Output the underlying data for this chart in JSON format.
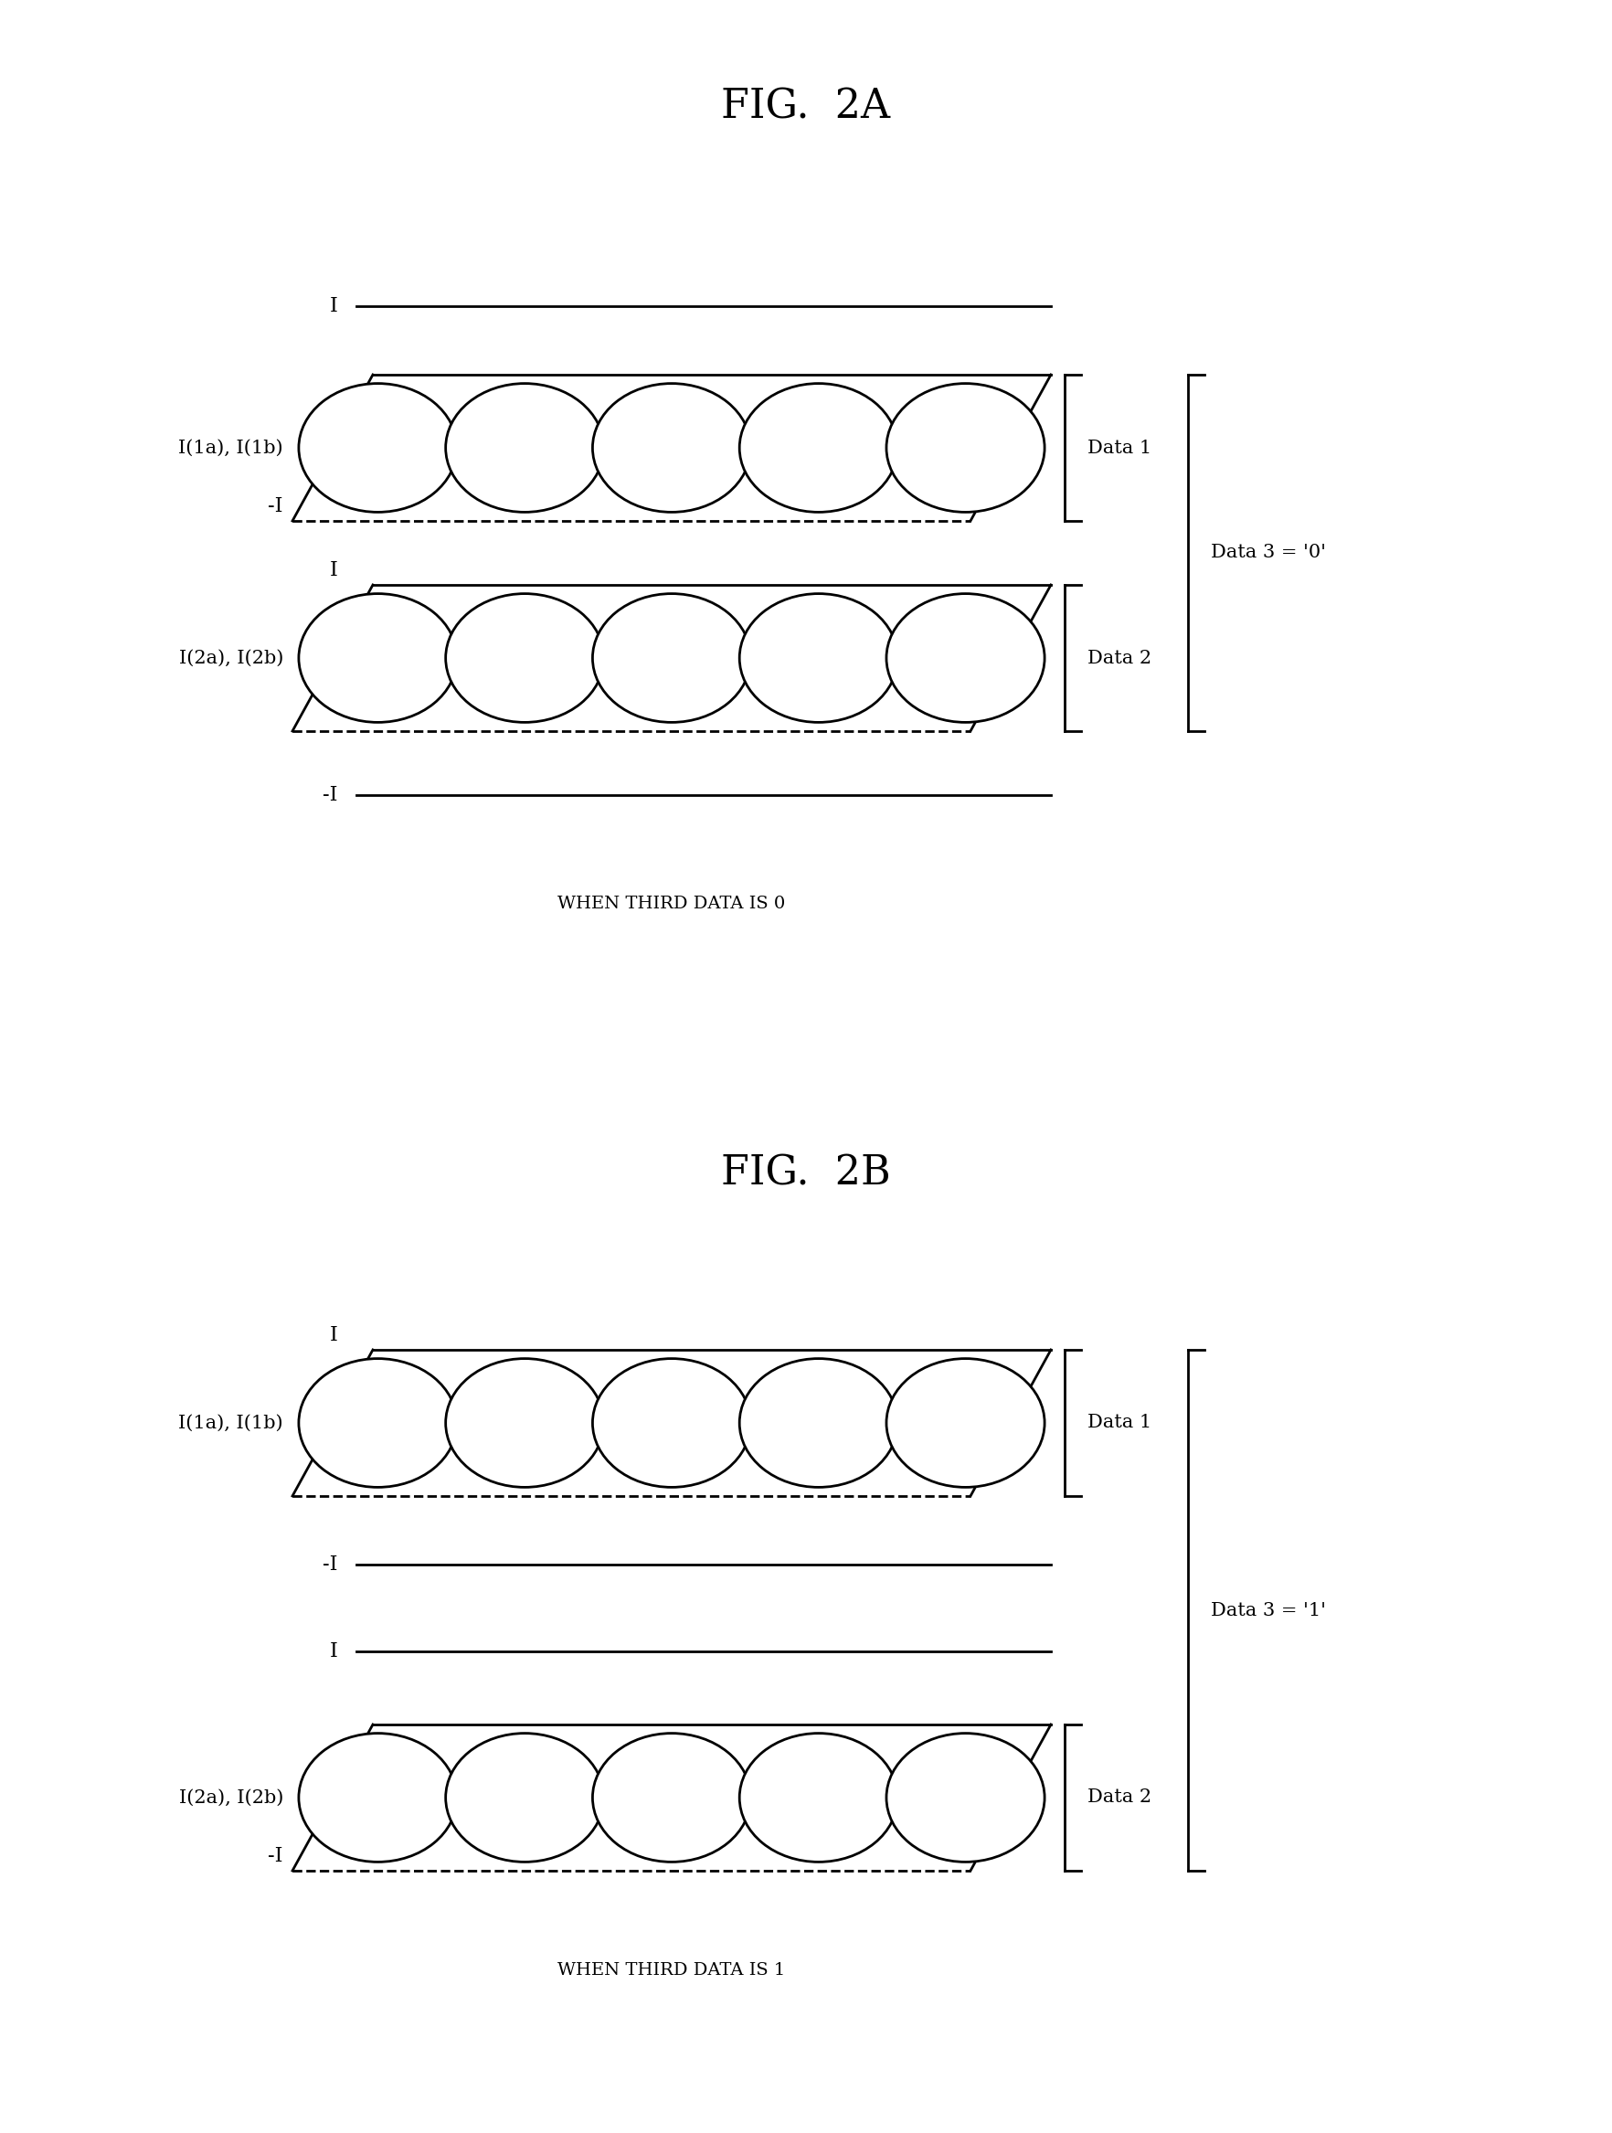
{
  "fig_title_A": "FIG.  2A",
  "fig_title_B": "FIG.  2B",
  "subtitle_A": "WHEN THIRD DATA IS 0",
  "subtitle_B": "WHEN THIRD DATA IS 1",
  "data3_label_A": "Data 3 = '0'",
  "data3_label_B": "Data 3 = '1'",
  "background_color": "#ffffff",
  "line_color": "#000000",
  "circle_color": "#ffffff",
  "circle_edge_color": "#000000",
  "title_fontsize": 32,
  "label_fontsize": 15,
  "subtitle_fontsize": 14
}
